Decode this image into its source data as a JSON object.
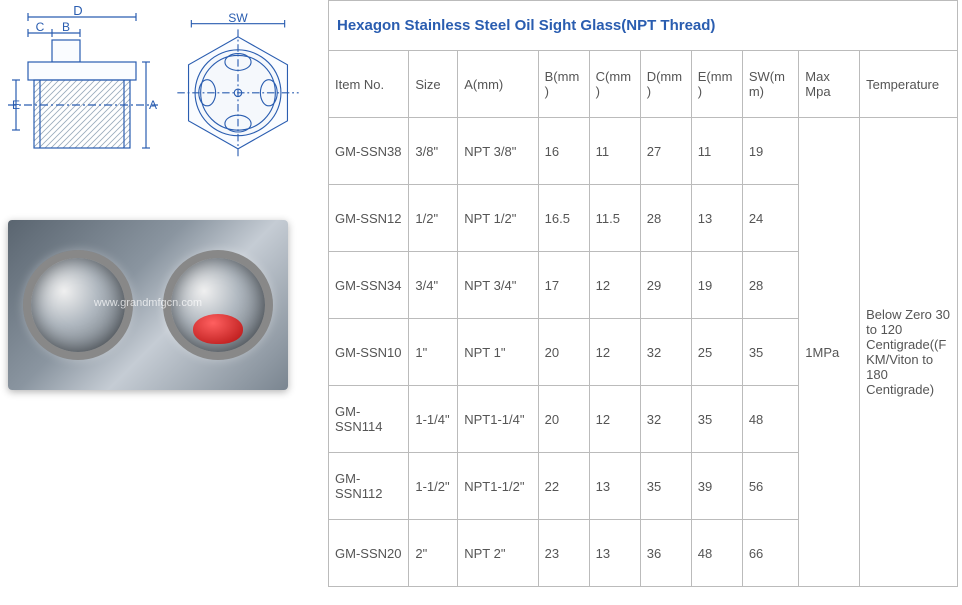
{
  "title": "Hexagon Stainless Steel Oil Sight Glass(NPT Thread)",
  "watermark": "www.grandmfgcn.com",
  "diagram": {
    "labels": {
      "A": "A",
      "B": "B",
      "C": "C",
      "D": "D",
      "E": "E",
      "SW": "SW"
    },
    "stroke": "#2a5db0",
    "fill_light": "#e8edf5"
  },
  "headers": {
    "item": "Item No.",
    "size": "Size",
    "a": "A(mm)",
    "b": "B(mm)",
    "c": "C(mm)",
    "d": "D(mm)",
    "e": "E(mm)",
    "sw": "SW(mm)",
    "mpa": "Max Mpa",
    "temp": "Temperature"
  },
  "rows": [
    {
      "item": "GM-SSN38",
      "size": "3/8\"",
      "a": "NPT 3/8\"",
      "b": "16",
      "c": "11",
      "d": "27",
      "e": "11",
      "sw": "19"
    },
    {
      "item": "GM-SSN12",
      "size": "1/2\"",
      "a": "NPT 1/2\"",
      "b": "16.5",
      "c": "11.5",
      "d": "28",
      "e": "13",
      "sw": "24"
    },
    {
      "item": "GM-SSN34",
      "size": "3/4\"",
      "a": "NPT 3/4\"",
      "b": "17",
      "c": "12",
      "d": "29",
      "e": "19",
      "sw": "28"
    },
    {
      "item": "GM-SSN10",
      "size": "1\"",
      "a": "NPT 1\"",
      "b": "20",
      "c": "12",
      "d": "32",
      "e": "25",
      "sw": "35"
    },
    {
      "item": "GM-SSN114",
      "size": "1-1/4\"",
      "a": "NPT1-1/4\"",
      "b": "20",
      "c": "12",
      "d": "32",
      "e": "35",
      "sw": "48"
    },
    {
      "item": "GM-SSN112",
      "size": "1-1/2\"",
      "a": "NPT1-1/2\"",
      "b": "22",
      "c": "13",
      "d": "35",
      "e": "39",
      "sw": "56"
    },
    {
      "item": "GM-SSN20",
      "size": "2\"",
      "a": "NPT 2\"",
      "b": "23",
      "c": "13",
      "d": "36",
      "e": "48",
      "sw": "66"
    }
  ],
  "mpa_value": "1MPa",
  "temp_value": "Below Zero 30 to 120 Centigrade((FKM/Viton to 180 Centigrade)",
  "colors": {
    "title": "#2a5db0",
    "border": "#bbbbbb",
    "text": "#555555"
  }
}
